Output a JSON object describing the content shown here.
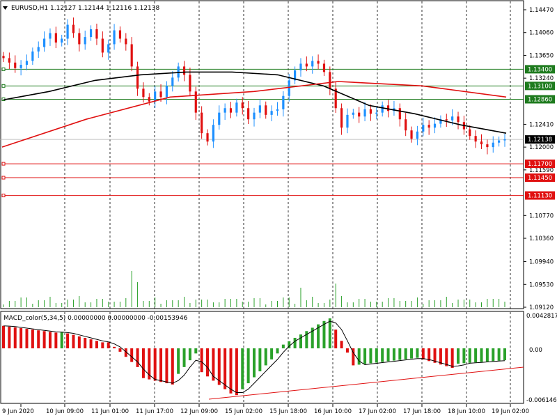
{
  "header": {
    "symbol_timeframe": "EURUSD,H1",
    "open": "1.12127",
    "high": "1.12144",
    "low": "1.12116",
    "close": "1.12138"
  },
  "macd": {
    "label": "MACD_color(5,34,5) 0.00000000 0.00000000 -0.00153946",
    "scale_top": "0.0042817",
    "scale_zero": "0.00",
    "scale_bottom": "-0.006146"
  },
  "price_scale": [
    "1.14470",
    "1.14060",
    "1.13650",
    "1.13240",
    "1.12410",
    "1.12000",
    "1.11590",
    "1.10770",
    "1.10360",
    "1.09940",
    "1.09530",
    "1.09120"
  ],
  "time_labels": [
    "9 Jun 2020",
    "10 Jun 09:00",
    "11 Jun 01:00",
    "11 Jun 17:00",
    "12 Jun 09:00",
    "15 Jun 02:00",
    "15 Jun 18:00",
    "16 Jun 10:00",
    "17 Jun 02:00",
    "17 Jun 18:00",
    "18 Jun 10:00",
    "19 Jun 02:00"
  ],
  "levels": [
    {
      "value": "1.13400",
      "color": "#1e7b1e"
    },
    {
      "value": "1.13100",
      "color": "#1e7b1e"
    },
    {
      "value": "1.12860",
      "color": "#1e7b1e"
    },
    {
      "value": "1.11700",
      "color": "#e01010"
    },
    {
      "value": "1.11450",
      "color": "#e01010"
    },
    {
      "value": "1.11130",
      "color": "#e01010"
    }
  ],
  "current_price": "1.12138",
  "colors": {
    "bull": "#1e90ff",
    "bear": "#e01010",
    "ma_fast": "#000000",
    "ma_slow": "#e01010",
    "macd_pos_up": "#2aa12a",
    "macd_neg": "#e01010",
    "hline_green": "#1e7b1e",
    "hline_red": "#e01010"
  },
  "chart_data": {
    "type": "candlestick",
    "symbol": "EURUSD",
    "timeframe": "H1",
    "price_range": [
      1.0912,
      1.1447
    ],
    "candles_close": [
      1.136,
      1.1352,
      1.1342,
      1.1348,
      1.1355,
      1.1372,
      1.138,
      1.1395,
      1.1405,
      1.1388,
      1.1395,
      1.142,
      1.1405,
      1.1385,
      1.1398,
      1.1412,
      1.1395,
      1.137,
      1.1385,
      1.141,
      1.1395,
      1.1385,
      1.1345,
      1.1305,
      1.129,
      1.1282,
      1.13,
      1.129,
      1.131,
      1.1325,
      1.1345,
      1.133,
      1.13,
      1.1262,
      1.1225,
      1.121,
      1.124,
      1.1262,
      1.127,
      1.1262,
      1.128,
      1.127,
      1.125,
      1.1262,
      1.1275,
      1.1258,
      1.1265,
      1.1268,
      1.1292,
      1.132,
      1.1338,
      1.135,
      1.1345,
      1.1355,
      1.135,
      1.1335,
      1.1305,
      1.127,
      1.1235,
      1.1258,
      1.1262,
      1.1255,
      1.1268,
      1.126,
      1.1262,
      1.1275,
      1.1265,
      1.127,
      1.125,
      1.123,
      1.1215,
      1.1228,
      1.124,
      1.1235,
      1.1242,
      1.125,
      1.1248,
      1.1255,
      1.1245,
      1.1232,
      1.122,
      1.121,
      1.1205,
      1.12,
      1.1208,
      1.1212,
      1.1214
    ],
    "ma_fast": [
      1.1285,
      1.13,
      1.132,
      1.133,
      1.1335,
      1.1335,
      1.133,
      1.131,
      1.1275,
      1.126,
      1.124,
      1.1225
    ],
    "ma_slow": [
      1.12,
      1.125,
      1.129,
      1.13,
      1.1318,
      1.131,
      1.129
    ],
    "macd_histogram_min": -0.00614,
    "macd_histogram_max": 0.00428
  }
}
